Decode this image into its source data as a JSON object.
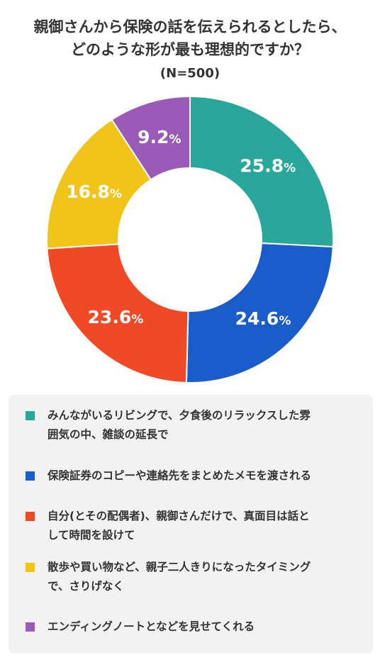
{
  "title_lines": [
    "親御さんから保険の話を伝えられるとしたら、",
    "どのような形が最も理想的ですか？"
  ],
  "n_label": "(N=500)",
  "chart_data": {
    "type": "pie",
    "donut": true,
    "start": "top",
    "direction": "clockwise",
    "legend_position": "bottom",
    "categories": [
      "みんなが いるリビングで、夕食後のリラックスした雰囲気の中、雑談の延長で",
      "保険証券のコピーや連絡先をまとめたメモを渡される",
      "自分(とその配偶者)、親御さんだけで、真面目は話として時間を設けて",
      "散歩や買い物など、親子二人きりになったタイミングで、さりげなく",
      "エンディングノートとなどを見せてくれる"
    ],
    "values": [
      25.8,
      24.6,
      23.6,
      16.8,
      9.2
    ],
    "value_labels": [
      "25.8",
      "24.6",
      "23.6",
      "16.8",
      "9.2"
    ],
    "unit": "%",
    "colors": [
      "#28a79a",
      "#1b5ccb",
      "#ef4a25",
      "#f0c419",
      "#9a5bb8"
    ]
  },
  "legend": [
    {
      "label": "みんなが いるリビングで、夕食後のリラックスした雰囲気の中、雑談の延長で",
      "lines": [
        "みんながいるリビングで、夕食後のリラックスした雰",
        "囲気の中、雑談の延長で"
      ],
      "color": "#28a79a"
    },
    {
      "label": "保険証券のコピーや連絡先をまとめたメモを渡される",
      "lines": [
        "保険証券のコピーや連絡先をまとめたメモを渡される"
      ],
      "color": "#1b5ccb"
    },
    {
      "label": "自分(とその配偶者)、親御さんだけで、真面目は話として時間を設けて",
      "lines": [
        "自分(とその配偶者)、親御さんだけで、真面目は話と",
        "して時間を設けて"
      ],
      "color": "#ef4a25"
    },
    {
      "label": "散歩や買い物など、親子二人きりになったタイミングで、さりげなく",
      "lines": [
        "散歩や買い物など、親子二人きりになったタイミング",
        "で、さりげなく"
      ],
      "color": "#f0c419"
    },
    {
      "label": "エンディングノートとなどを見せてくれる",
      "lines": [
        "エンディングノートとなどを見せてくれる"
      ],
      "color": "#9a5bb8"
    }
  ]
}
